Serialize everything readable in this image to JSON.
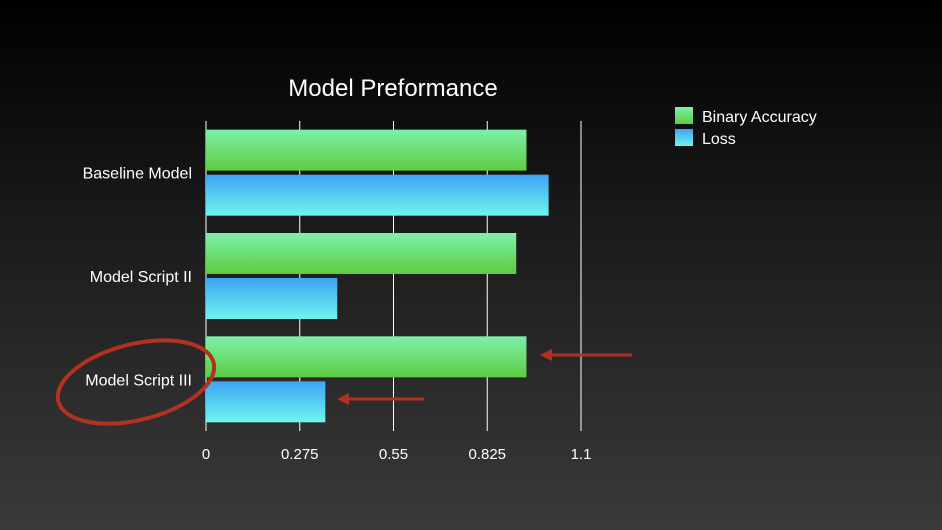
{
  "chart_data": {
    "type": "bar",
    "orientation": "horizontal",
    "title": "Model Preformance",
    "xlabel": "",
    "ylabel": "",
    "categories": [
      "Baseline Model",
      "Model Script II",
      "Model Script III"
    ],
    "series": [
      {
        "name": "Binary Accuracy",
        "values": [
          0.94,
          0.91,
          0.94
        ]
      },
      {
        "name": "Loss",
        "values": [
          1.005,
          0.385,
          0.35
        ]
      }
    ],
    "xlim": [
      0,
      1.1
    ],
    "xticks": [
      "0",
      "0.275",
      "0.55",
      "0.825",
      "1.1"
    ],
    "grid": true,
    "legend": "top-right"
  },
  "colors": {
    "accuracy_top": "#7df0a9",
    "accuracy_bottom": "#5ecb40",
    "loss_top": "#3ea3f3",
    "loss_bottom": "#6ff5ee",
    "annotation": "#b2311f",
    "grid": "#ffffff"
  }
}
